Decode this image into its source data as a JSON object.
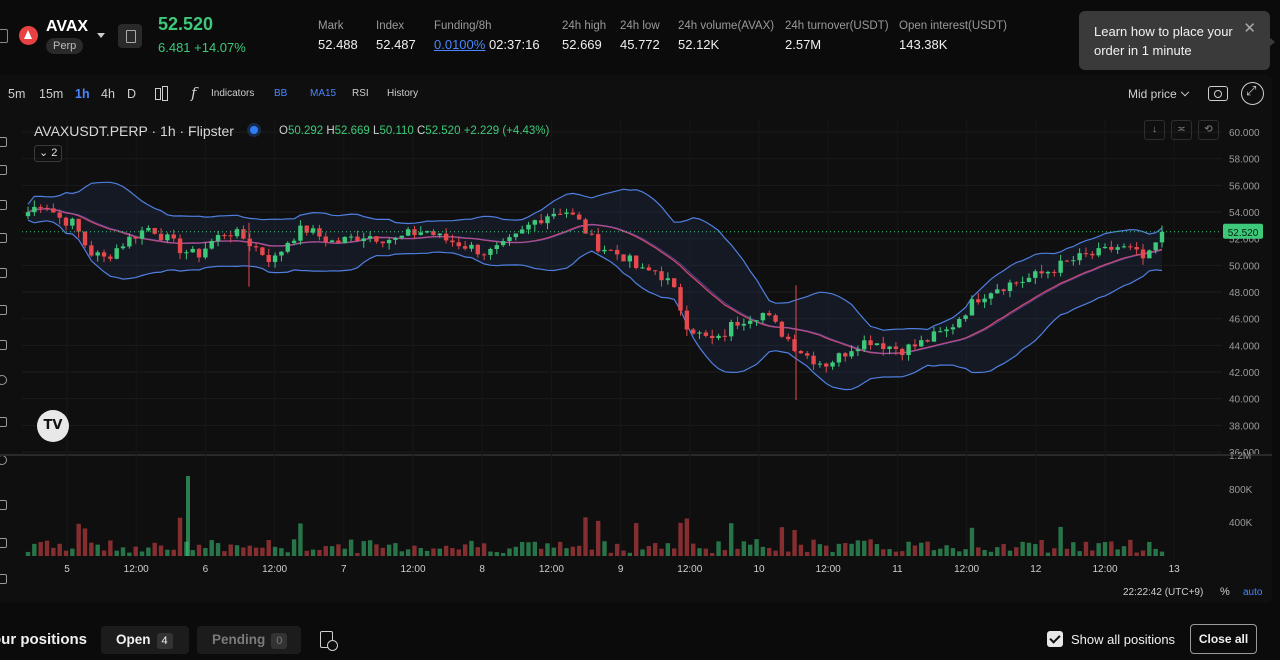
{
  "header": {
    "symbol": "AVAX",
    "contract_type": "Perp",
    "last_price": "52.520",
    "change": "6.481 +14.07%",
    "stats": [
      {
        "label": "Mark",
        "value": "52.488"
      },
      {
        "label": "Index",
        "value": "52.487"
      },
      {
        "label": "Funding/8h",
        "value": "0.0100%",
        "extra": "02:37:16"
      },
      {
        "label": "24h high",
        "value": "52.669"
      },
      {
        "label": "24h low",
        "value": "45.772"
      },
      {
        "label": "24h volume(AVAX)",
        "value": "52.12K"
      },
      {
        "label": "24h turnover(USDT)",
        "value": "2.57M"
      },
      {
        "label": "Open interest(USDT)",
        "value": "143.38K"
      }
    ]
  },
  "tooltip": {
    "text": "Learn how to place your order in 1 minute",
    "close": "✕"
  },
  "toolbar": {
    "timeframes": [
      "5m",
      "15m",
      "1h",
      "4h",
      "D"
    ],
    "active_timeframe": "1h",
    "indicators_label": "Indicators",
    "bb_label": "BB",
    "ma_label": "MA15",
    "rsi_label": "RSI",
    "history_label": "History",
    "price_mode": "Mid price"
  },
  "legend": {
    "title": "AVAXUSDT.PERP · 1h · Flipster",
    "o": "50.292",
    "h": "52.669",
    "l": "50.110",
    "c": "52.520",
    "change": "+2.229 (+4.43%)",
    "collapse_count": "2"
  },
  "chart_data": {
    "type": "candlestick",
    "price_axis_ticks": [
      "60.000",
      "58.000",
      "56.000",
      "54.000",
      "52.000",
      "50.000",
      "48.000",
      "46.000",
      "44.000",
      "42.000",
      "40.000",
      "38.000",
      "36.000"
    ],
    "volume_axis_ticks": [
      "1.2M",
      "800K",
      "400K"
    ],
    "time_axis_ticks": [
      "5",
      "12:00",
      "6",
      "12:00",
      "7",
      "12:00",
      "8",
      "12:00",
      "9",
      "12:00",
      "10",
      "12:00",
      "11",
      "12:00",
      "12",
      "12:00",
      "13"
    ],
    "current_price_label": "52.520",
    "y_range": [
      35,
      61
    ],
    "approx_close_path": [
      54.0,
      54.8,
      53.6,
      53.1,
      51.0,
      50.5,
      51.5,
      52.3,
      52.9,
      52.0,
      51.2,
      50.7,
      51.8,
      52.6,
      52.1,
      51.2,
      50.3,
      51.9,
      52.8,
      52.2,
      51.7,
      52.0,
      52.3,
      52.1,
      51.9,
      52.4,
      52.6,
      52.0,
      51.7,
      51.3,
      50.9,
      51.4,
      52.2,
      53.3,
      53.9,
      54.2,
      53.2,
      51.6,
      51.1,
      50.6,
      49.5,
      49.6,
      48.5,
      45.6,
      44.6,
      44.3,
      45.6,
      46.2,
      46.4,
      45.2,
      44.0,
      43.1,
      42.6,
      43.2,
      44.1,
      44.4,
      44.0,
      43.7,
      44.0,
      44.6,
      45.1,
      46.4,
      47.6,
      48.3,
      48.6,
      48.9,
      49.3,
      49.8,
      50.3,
      50.7,
      50.9,
      51.4,
      51.1,
      50.3,
      52.52
    ],
    "legend_price_mode": "Mid price",
    "time_footer": "22:22:42 (UTC+9)",
    "scale_percent": "%",
    "scale_auto": "auto"
  },
  "positions": {
    "title": "our positions",
    "tabs": [
      {
        "label": "Open",
        "count": "4"
      },
      {
        "label": "Pending",
        "count": "0"
      }
    ],
    "show_all_label": "Show all positions",
    "close_all_label": "Close all"
  },
  "colors": {
    "up": "#3ec97a",
    "down": "#e5484d",
    "accent": "#4a86ff",
    "bb_band": "#4f7fe0",
    "ma": "#c9456a"
  }
}
